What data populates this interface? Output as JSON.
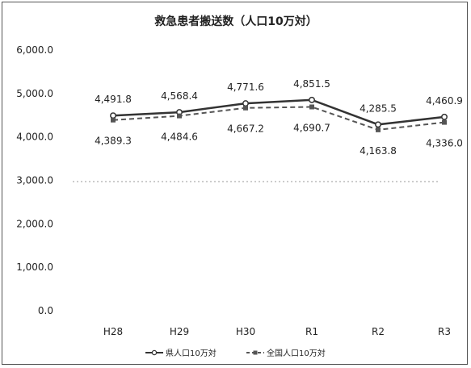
{
  "chart_data": {
    "type": "line",
    "title": "救急患者搬送数（人口10万対）",
    "categories": [
      "H28",
      "H29",
      "H30",
      "R1",
      "R2",
      "R3"
    ],
    "yticks": [
      "6,000.0",
      "5,000.0",
      "4,000.0",
      "3,000.0",
      "2,000.0",
      "1,000.0",
      "0.0"
    ],
    "ylim": [
      0,
      6000
    ],
    "grid": false,
    "legend_position": "bottom",
    "series": [
      {
        "name": "県人口10万対",
        "values": [
          4491.8,
          4568.4,
          4771.6,
          4851.5,
          4285.5,
          4460.9
        ],
        "labels": [
          "4,491.8",
          "4,568.4",
          "4,771.6",
          "4,851.5",
          "4,285.5",
          "4,460.9"
        ],
        "color": "#333333",
        "style": "solid"
      },
      {
        "name": "全国人口10万対",
        "values": [
          4389.3,
          4484.6,
          4667.2,
          4690.7,
          4163.8,
          4336.0
        ],
        "labels": [
          "4,389.3",
          "4,484.6",
          "4,667.2",
          "4,690.7",
          "4,163.8",
          "4,336.0"
        ],
        "color": "#555555",
        "style": "dashed"
      }
    ]
  }
}
